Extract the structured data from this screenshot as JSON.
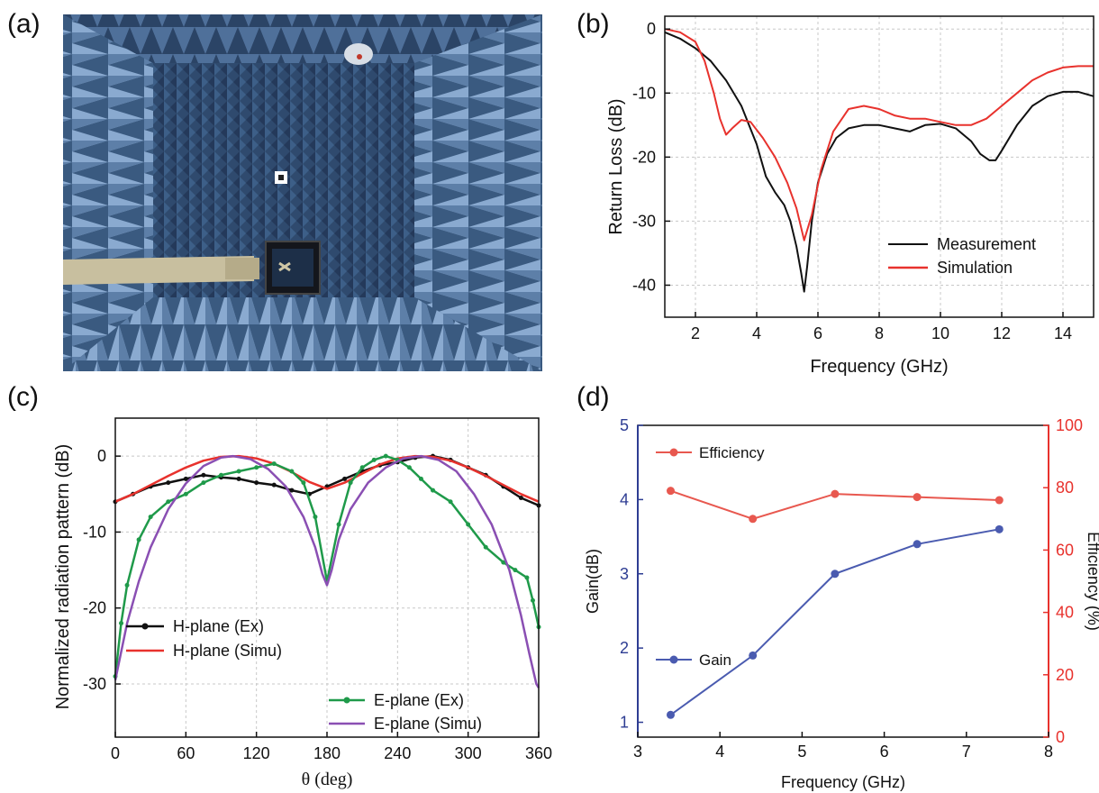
{
  "panels": {
    "a": {
      "letter": "(a)"
    },
    "b": {
      "letter": "(b)"
    },
    "c": {
      "letter": "(c)"
    },
    "d": {
      "letter": "(d)"
    }
  },
  "photo": {
    "description_icon": "anechoic-chamber-photo",
    "colors": {
      "wall": "#3a5a80",
      "dark": "#1d2f48",
      "light": "#7f9fc2",
      "arm": "#bfb79a"
    }
  },
  "chart_data": [
    {
      "panel": "b",
      "type": "line",
      "title": "",
      "xlabel": "Frequency (GHz)",
      "ylabel": "Return Loss (dB)",
      "xlim": [
        1,
        15
      ],
      "ylim": [
        -45,
        2
      ],
      "xticks": [
        2,
        4,
        6,
        8,
        10,
        12,
        14
      ],
      "yticks": [
        0,
        -10,
        -20,
        -30,
        -40
      ],
      "grid": true,
      "legend_position": "bottom-right",
      "series": [
        {
          "name": "Measurement",
          "color": "#111111",
          "x": [
            1,
            1.5,
            2,
            2.5,
            3,
            3.5,
            4,
            4.3,
            4.6,
            4.9,
            5.1,
            5.3,
            5.45,
            5.55,
            5.65,
            5.8,
            6,
            6.3,
            6.6,
            7,
            7.5,
            8,
            8.5,
            9,
            9.5,
            10,
            10.5,
            11,
            11.3,
            11.6,
            11.8,
            12,
            12.5,
            13,
            13.5,
            14,
            14.5,
            15
          ],
          "y": [
            -0.5,
            -1.5,
            -3,
            -5,
            -8,
            -12,
            -18,
            -23,
            -25.5,
            -27.5,
            -30,
            -34,
            -38,
            -41,
            -37,
            -30,
            -24,
            -19.5,
            -17,
            -15.5,
            -15,
            -15,
            -15.5,
            -16,
            -15,
            -14.8,
            -15.5,
            -17.5,
            -19.5,
            -20.5,
            -20.5,
            -19,
            -15,
            -12,
            -10.5,
            -9.8,
            -9.8,
            -10.5
          ]
        },
        {
          "name": "Simulation",
          "color": "#e8322d",
          "x": [
            1,
            1.5,
            2,
            2.3,
            2.6,
            2.8,
            3,
            3.2,
            3.5,
            3.8,
            4.2,
            4.6,
            5,
            5.3,
            5.55,
            5.8,
            6.1,
            6.5,
            7,
            7.5,
            8,
            8.5,
            9,
            9.5,
            10,
            10.5,
            11,
            11.5,
            12,
            12.5,
            13,
            13.5,
            14,
            14.5,
            15
          ],
          "y": [
            0,
            -0.5,
            -2,
            -5,
            -10,
            -14,
            -16.5,
            -15.5,
            -14.2,
            -14.5,
            -17,
            -20,
            -24,
            -28,
            -33,
            -29,
            -22,
            -16,
            -12.5,
            -12,
            -12.5,
            -13.5,
            -14,
            -14,
            -14.5,
            -15,
            -15,
            -14,
            -12,
            -10,
            -8,
            -6.8,
            -6,
            -5.8,
            -5.8
          ]
        }
      ]
    },
    {
      "panel": "c",
      "type": "line",
      "title": "",
      "xlabel": "θ (deg)",
      "ylabel": "Normalized radiation pattern (dB)",
      "xlim": [
        0,
        360
      ],
      "ylim": [
        -37,
        5
      ],
      "xticks": [
        0,
        60,
        120,
        180,
        240,
        300,
        360
      ],
      "yticks": [
        0,
        -10,
        -20,
        -30
      ],
      "grid": true,
      "legend_position": "lower-left and lower-right",
      "series": [
        {
          "name": "H-plane (Ex)",
          "color": "#111111",
          "marker": "dot",
          "x": [
            0,
            15,
            30,
            45,
            60,
            75,
            90,
            105,
            120,
            135,
            150,
            165,
            180,
            195,
            210,
            225,
            240,
            255,
            270,
            285,
            300,
            315,
            330,
            345,
            360
          ],
          "y": [
            -6,
            -5,
            -4,
            -3.5,
            -3,
            -2.5,
            -2.8,
            -3,
            -3.5,
            -3.8,
            -4.5,
            -5,
            -4,
            -3,
            -2,
            -1.2,
            -0.8,
            -0.2,
            0,
            -0.5,
            -1.5,
            -2.5,
            -4,
            -5.5,
            -6.5
          ]
        },
        {
          "name": "H-plane (Simu)",
          "color": "#e8322d",
          "x": [
            0,
            15,
            30,
            45,
            60,
            75,
            90,
            105,
            120,
            135,
            150,
            165,
            180,
            195,
            210,
            225,
            240,
            255,
            270,
            285,
            300,
            315,
            330,
            345,
            360
          ],
          "y": [
            -6,
            -5,
            -3.8,
            -2.6,
            -1.5,
            -0.6,
            -0.1,
            0,
            -0.3,
            -1,
            -2.1,
            -3.4,
            -4.3,
            -3.5,
            -2.3,
            -1.1,
            -0.3,
            0,
            -0.1,
            -0.6,
            -1.5,
            -2.6,
            -3.8,
            -5,
            -6
          ]
        },
        {
          "name": "E-plane (Ex)",
          "color": "#1f9a4a",
          "marker": "dot",
          "x": [
            0,
            5,
            10,
            20,
            30,
            45,
            60,
            75,
            90,
            105,
            120,
            135,
            150,
            160,
            170,
            180,
            190,
            200,
            210,
            220,
            230,
            240,
            250,
            260,
            270,
            285,
            300,
            315,
            330,
            340,
            350,
            355,
            360
          ],
          "y": [
            -29,
            -22,
            -17,
            -11,
            -8,
            -6,
            -5,
            -3.5,
            -2.5,
            -2,
            -1.5,
            -1,
            -2,
            -3.5,
            -8,
            -16.5,
            -9,
            -3.5,
            -1.5,
            -0.5,
            0,
            -0.5,
            -1.5,
            -3,
            -4.5,
            -6,
            -9,
            -12,
            -14,
            -15,
            -16,
            -19,
            -22.5
          ]
        },
        {
          "name": "E-plane (Simu)",
          "color": "#8a4fb3",
          "x": [
            0,
            10,
            20,
            30,
            45,
            60,
            75,
            90,
            100,
            115,
            130,
            145,
            160,
            170,
            176,
            180,
            184,
            190,
            200,
            215,
            230,
            245,
            260,
            275,
            290,
            305,
            320,
            335,
            345,
            352,
            358,
            360
          ],
          "y": [
            -29.5,
            -22,
            -16.5,
            -12,
            -7,
            -3.6,
            -1.3,
            -0.2,
            0,
            -0.4,
            -1.7,
            -4,
            -8,
            -12,
            -15.5,
            -17,
            -15,
            -11,
            -7,
            -3.5,
            -1.5,
            -0.3,
            0,
            -0.5,
            -2,
            -5,
            -9,
            -15,
            -21,
            -26,
            -30,
            -30.5
          ]
        }
      ]
    },
    {
      "panel": "d",
      "type": "line",
      "title": "",
      "xlabel": "Frequency (GHz)",
      "ylabel": "Gain(dB)",
      "ylabel_right": "Efficiency (%)",
      "xlim": [
        3,
        8
      ],
      "ylim": [
        0.8,
        5
      ],
      "ylim_right": [
        0,
        100
      ],
      "xticks": [
        3,
        4,
        5,
        6,
        7,
        8
      ],
      "yticks": [
        1,
        2,
        3,
        4,
        5
      ],
      "yticks_right": [
        0,
        20,
        40,
        60,
        80,
        100
      ],
      "grid": false,
      "colors": {
        "gain_axis": "#2e3d93",
        "efficiency_axis": "#e8322d"
      },
      "series": [
        {
          "name": "Efficiency",
          "axis": "right",
          "color": "#e8584f",
          "marker": "dot",
          "x": [
            3.4,
            4.4,
            5.4,
            6.4,
            7.4
          ],
          "y": [
            79,
            70,
            78,
            77,
            76
          ]
        },
        {
          "name": "Gain",
          "axis": "left",
          "color": "#4a5bb0",
          "marker": "dot",
          "x": [
            3.4,
            4.4,
            5.4,
            6.4,
            7.4
          ],
          "y": [
            1.1,
            1.9,
            3.0,
            3.4,
            3.6
          ]
        }
      ]
    }
  ]
}
